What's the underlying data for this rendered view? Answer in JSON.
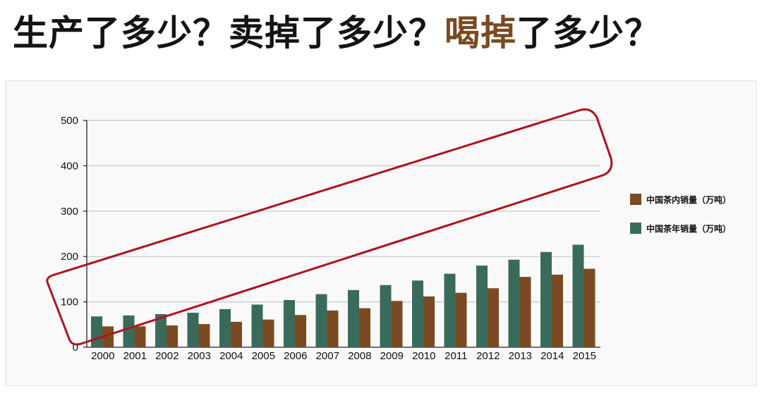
{
  "headline": {
    "part1": "生产了多少？",
    "part2": "卖掉了多少？",
    "part3_accent": "喝掉",
    "part4": "了多少？"
  },
  "colors": {
    "production": "#3a6b5a",
    "domestic_sales": "#7a4a22",
    "highlight": "#b0121b",
    "gridline": "#c8c8c8",
    "accent_text": "#7a4a22"
  },
  "chart_data": {
    "type": "bar",
    "categories": [
      "2000",
      "2001",
      "2002",
      "2003",
      "2004",
      "2005",
      "2006",
      "2007",
      "2008",
      "2009",
      "2010",
      "2011",
      "2012",
      "2013",
      "2014",
      "2015"
    ],
    "series": [
      {
        "name": "中国茶年销量（万吨）",
        "values": [
          68,
          70,
          73,
          76,
          84,
          94,
          104,
          117,
          126,
          137,
          147,
          162,
          180,
          193,
          210,
          226
        ]
      },
      {
        "name": "中国茶内销量（万吨）",
        "values": [
          46,
          46,
          48,
          51,
          56,
          61,
          71,
          81,
          86,
          102,
          112,
          120,
          130,
          155,
          160,
          173
        ]
      }
    ],
    "legend_order": [
      "中国茶内销量（万吨）",
      "中国茶年销量（万吨）"
    ],
    "yticks": [
      0,
      100,
      200,
      300,
      400,
      500
    ],
    "ylim": [
      0,
      500
    ],
    "grid": true,
    "legend_position": "right",
    "annotation": "red rounded outline enclosing the rising trend of bars from 2000 to 2015"
  }
}
